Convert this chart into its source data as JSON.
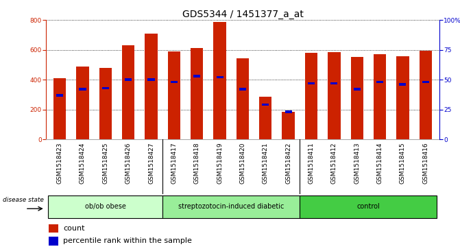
{
  "title": "GDS5344 / 1451377_a_at",
  "samples": [
    "GSM1518423",
    "GSM1518424",
    "GSM1518425",
    "GSM1518426",
    "GSM1518427",
    "GSM1518417",
    "GSM1518418",
    "GSM1518419",
    "GSM1518420",
    "GSM1518421",
    "GSM1518422",
    "GSM1518411",
    "GSM1518412",
    "GSM1518413",
    "GSM1518414",
    "GSM1518415",
    "GSM1518416"
  ],
  "counts": [
    410,
    490,
    480,
    630,
    710,
    590,
    610,
    785,
    545,
    285,
    185,
    580,
    585,
    550,
    570,
    555,
    595
  ],
  "percentile_ranks": [
    37,
    42,
    43,
    50,
    50,
    48,
    53,
    52,
    42,
    29,
    23,
    47,
    47,
    42,
    48,
    46,
    48
  ],
  "groups": [
    {
      "label": "ob/ob obese",
      "start": 0,
      "end": 5,
      "color": "#ccffcc"
    },
    {
      "label": "streptozotocin-induced diabetic",
      "start": 5,
      "end": 11,
      "color": "#99ee99"
    },
    {
      "label": "control",
      "start": 11,
      "end": 17,
      "color": "#44cc44"
    }
  ],
  "bar_color": "#cc2200",
  "percentile_color": "#0000cc",
  "ylim_left": [
    0,
    800
  ],
  "ylim_right": [
    0,
    100
  ],
  "yticks_left": [
    0,
    200,
    400,
    600,
    800
  ],
  "yticks_right": [
    0,
    25,
    50,
    75,
    100
  ],
  "xtick_bg_color": "#d8d8d8",
  "group_border_color": "#000000",
  "plot_bg_color": "#ffffff",
  "fig_bg_color": "#ffffff",
  "grid_color": "#000000",
  "title_fontsize": 10,
  "tick_fontsize": 6.5,
  "label_fontsize": 8,
  "disease_state_label": "disease state",
  "legend_count_label": "count",
  "legend_percentile_label": "percentile rank within the sample"
}
